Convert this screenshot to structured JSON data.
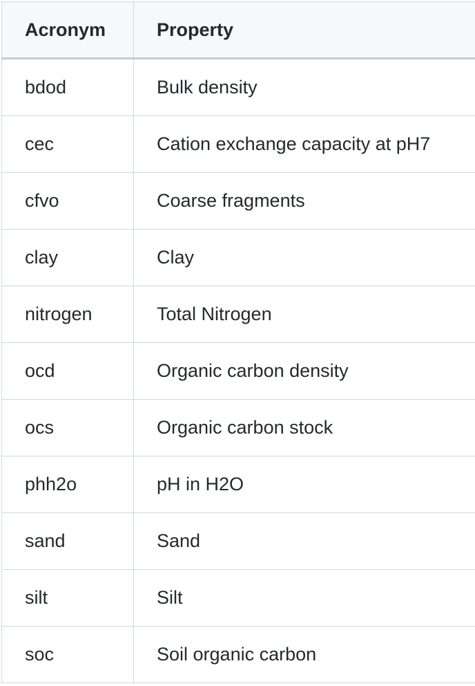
{
  "table": {
    "headers": [
      "Acronym",
      "Property"
    ],
    "rows": [
      [
        "bdod",
        "Bulk density"
      ],
      [
        "cec",
        "Cation exchange capacity at pH7"
      ],
      [
        "cfvo",
        "Coarse fragments"
      ],
      [
        "clay",
        "Clay"
      ],
      [
        "nitrogen",
        "Total Nitrogen"
      ],
      [
        "ocd",
        "Organic carbon density"
      ],
      [
        "ocs",
        "Organic carbon stock"
      ],
      [
        "phh2o",
        "pH in H2O"
      ],
      [
        "sand",
        "Sand"
      ],
      [
        "silt",
        "Silt"
      ],
      [
        "soc",
        "Soil organic carbon"
      ]
    ]
  }
}
